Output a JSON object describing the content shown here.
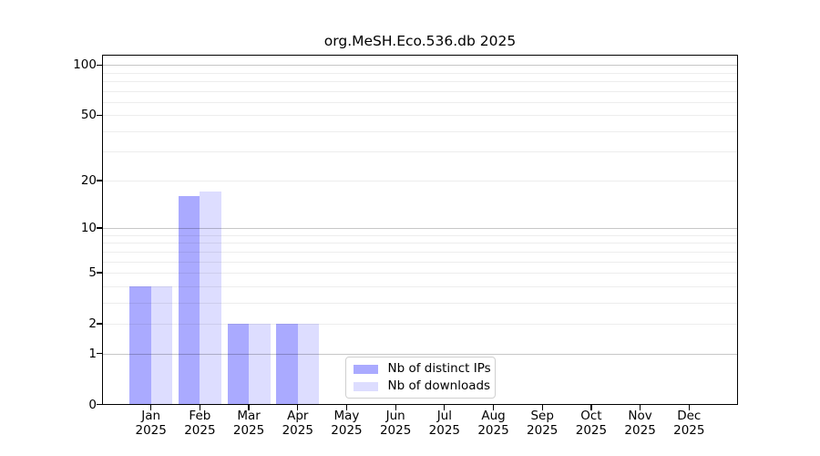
{
  "chart_data": {
    "type": "bar",
    "title": "org.MeSH.Eco.536.db 2025",
    "x_tick_months": [
      "Jan",
      "Feb",
      "Mar",
      "Apr",
      "May",
      "Jun",
      "Jul",
      "Aug",
      "Sep",
      "Oct",
      "Nov",
      "Dec"
    ],
    "x_tick_year": "2025",
    "y_scale": "log1p",
    "y_tick_labels": [
      "0",
      "1",
      "2",
      "5",
      "10",
      "20",
      "50",
      "100"
    ],
    "y_tick_values": [
      0,
      1,
      2,
      5,
      10,
      20,
      50,
      100
    ],
    "grid_major_values": [
      1,
      10,
      100
    ],
    "grid_minor_values": [
      2,
      3,
      4,
      5,
      6,
      7,
      8,
      9,
      20,
      30,
      40,
      50,
      60,
      70,
      80,
      90
    ],
    "ylim": [
      0,
      116
    ],
    "grid": "horizontal major+minor, drawn over bars",
    "legend_position": "bottom-center-inside",
    "series": [
      {
        "name": "Nb of distinct IPs",
        "color": "#aaaaff",
        "values": [
          4,
          16,
          2,
          2,
          0,
          0,
          0,
          0,
          0,
          0,
          0,
          0
        ]
      },
      {
        "name": "Nb of downloads",
        "color": "#ddddff",
        "values": [
          4,
          17,
          2,
          2,
          0,
          0,
          0,
          0,
          0,
          0,
          0,
          0
        ]
      }
    ]
  }
}
